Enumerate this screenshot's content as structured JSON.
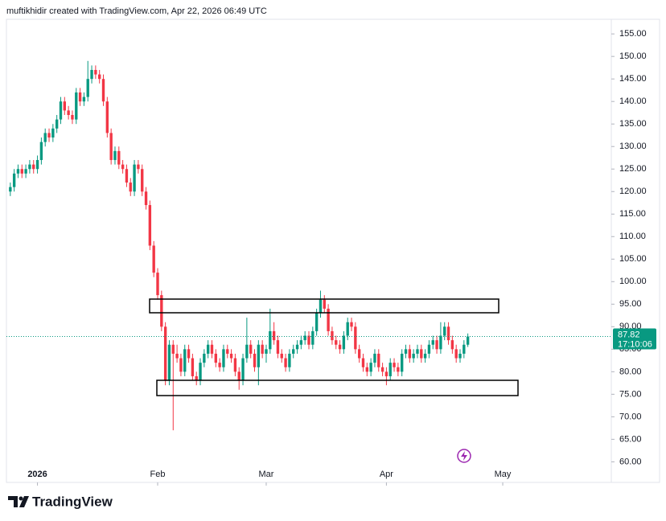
{
  "header": "muftikhidir created with TradingView.com, Apr 22, 2026 06:49 UTC",
  "logo": "TradingView",
  "chart_data": {
    "type": "candlestick",
    "up_color": "#089981",
    "down_color": "#f23645",
    "last_price": 87.82,
    "countdown": "17:10:06",
    "xlim": [
      -1,
      155
    ],
    "xticks": [
      {
        "value": 7,
        "label": "2026"
      },
      {
        "value": 38,
        "label": "Feb"
      },
      {
        "value": 66,
        "label": "Mar"
      },
      {
        "value": 97,
        "label": "Apr"
      },
      {
        "value": 127,
        "label": "May"
      }
    ],
    "ylim": [
      59,
      158.6
    ],
    "yticks": [
      {
        "value": 60,
        "label": "60.00"
      },
      {
        "value": 65,
        "label": "65.00"
      },
      {
        "value": 70,
        "label": "70.00"
      },
      {
        "value": 75,
        "label": "75.00"
      },
      {
        "value": 80,
        "label": "80.00"
      },
      {
        "value": 85,
        "label": "85.00"
      },
      {
        "value": 90,
        "label": "90.00"
      },
      {
        "value": 95,
        "label": "95.00"
      },
      {
        "value": 100,
        "label": "100.00"
      },
      {
        "value": 105,
        "label": "105.00"
      },
      {
        "value": 110,
        "label": "110.00"
      },
      {
        "value": 115,
        "label": "115.00"
      },
      {
        "value": 120,
        "label": "120.00"
      },
      {
        "value": 125,
        "label": "125.00"
      },
      {
        "value": 130,
        "label": "130.00"
      },
      {
        "value": 135,
        "label": "135.00"
      },
      {
        "value": 140,
        "label": "140.00"
      },
      {
        "value": 145,
        "label": "145.00"
      },
      {
        "value": 150,
        "label": "150.00"
      },
      {
        "value": 155,
        "label": "155.00"
      }
    ],
    "ohlc": [
      [
        120,
        122,
        119,
        121
      ],
      [
        121,
        125,
        120,
        124
      ],
      [
        124,
        126,
        123,
        125
      ],
      [
        125,
        126,
        123,
        124
      ],
      [
        124,
        126,
        123,
        125
      ],
      [
        125,
        127,
        124,
        126
      ],
      [
        126,
        127,
        124,
        125
      ],
      [
        125,
        128,
        124,
        127
      ],
      [
        127,
        132,
        126,
        131
      ],
      [
        131,
        134,
        130,
        133
      ],
      [
        133,
        134,
        131,
        132
      ],
      [
        132,
        135,
        131,
        134
      ],
      [
        134,
        137,
        133,
        136
      ],
      [
        136,
        141,
        135,
        140
      ],
      [
        140,
        141,
        137,
        138
      ],
      [
        138,
        139,
        136,
        137
      ],
      [
        137,
        138,
        135,
        136
      ],
      [
        136,
        143,
        135,
        142
      ],
      [
        142,
        143,
        139,
        140
      ],
      [
        140,
        142,
        139,
        141
      ],
      [
        141,
        149,
        140,
        145
      ],
      [
        145,
        148,
        144,
        147
      ],
      [
        147,
        148,
        145,
        146
      ],
      [
        146,
        147,
        144,
        145
      ],
      [
        145,
        146,
        139,
        140
      ],
      [
        140,
        141,
        132,
        133
      ],
      [
        133,
        134,
        126,
        127
      ],
      [
        127,
        130,
        126,
        129
      ],
      [
        129,
        130,
        125,
        126
      ],
      [
        126,
        127,
        124,
        125
      ],
      [
        125,
        126,
        121,
        122
      ],
      [
        122,
        123,
        119,
        120
      ],
      [
        120,
        127,
        119,
        126
      ],
      [
        126,
        127,
        124,
        125
      ],
      [
        125,
        126,
        119,
        120
      ],
      [
        120,
        121,
        116,
        117
      ],
      [
        117,
        118,
        107,
        108
      ],
      [
        108,
        109,
        101,
        102
      ],
      [
        102,
        103,
        96,
        97
      ],
      [
        97,
        98,
        89,
        90
      ],
      [
        90,
        91,
        77,
        78
      ],
      [
        78,
        87,
        77,
        86
      ],
      [
        86,
        87,
        67,
        84
      ],
      [
        84,
        86,
        82,
        83
      ],
      [
        83,
        84,
        79,
        80
      ],
      [
        80,
        86,
        79,
        85
      ],
      [
        85,
        86,
        82,
        83
      ],
      [
        83,
        84,
        78,
        79
      ],
      [
        79,
        80,
        77,
        78
      ],
      [
        78,
        83,
        77,
        82
      ],
      [
        82,
        85,
        81,
        84
      ],
      [
        84,
        87,
        83,
        86
      ],
      [
        86,
        87,
        83,
        84
      ],
      [
        84,
        85,
        81,
        82
      ],
      [
        82,
        83,
        80,
        81
      ],
      [
        81,
        86,
        80,
        85
      ],
      [
        85,
        86,
        83,
        84
      ],
      [
        84,
        85,
        82,
        83
      ],
      [
        83,
        84,
        79,
        80
      ],
      [
        80,
        81,
        76,
        78
      ],
      [
        78,
        84,
        77,
        83
      ],
      [
        83,
        92,
        82,
        86
      ],
      [
        86,
        87,
        83,
        84
      ],
      [
        84,
        85,
        80,
        81
      ],
      [
        81,
        87,
        77,
        86
      ],
      [
        86,
        87,
        83,
        84
      ],
      [
        84,
        86,
        82,
        85
      ],
      [
        85,
        94,
        84,
        89
      ],
      [
        89,
        91,
        86,
        87
      ],
      [
        87,
        88,
        83,
        84
      ],
      [
        84,
        85,
        82,
        83
      ],
      [
        83,
        84,
        80,
        81
      ],
      [
        81,
        85,
        80,
        84
      ],
      [
        84,
        86,
        83,
        85
      ],
      [
        85,
        87,
        84,
        86
      ],
      [
        86,
        88,
        85,
        87
      ],
      [
        87,
        89,
        86,
        88
      ],
      [
        88,
        89,
        85,
        86
      ],
      [
        86,
        90,
        85,
        89
      ],
      [
        89,
        94,
        88,
        93
      ],
      [
        93,
        98,
        92,
        96
      ],
      [
        96,
        97,
        93,
        94
      ],
      [
        94,
        95,
        88,
        89
      ],
      [
        89,
        90,
        86,
        87
      ],
      [
        87,
        88,
        85,
        86
      ],
      [
        86,
        87,
        84,
        85
      ],
      [
        85,
        89,
        84,
        88
      ],
      [
        88,
        92,
        87,
        91
      ],
      [
        91,
        92,
        89,
        90
      ],
      [
        90,
        91,
        84,
        85
      ],
      [
        85,
        86,
        82,
        83
      ],
      [
        83,
        84,
        80,
        81
      ],
      [
        81,
        82,
        79,
        80
      ],
      [
        80,
        83,
        79,
        82
      ],
      [
        82,
        85,
        81,
        84
      ],
      [
        84,
        85,
        80,
        81
      ],
      [
        81,
        82,
        79,
        80
      ],
      [
        80,
        81,
        77,
        79
      ],
      [
        79,
        83,
        78,
        82
      ],
      [
        82,
        83,
        80,
        81
      ],
      [
        81,
        82,
        79,
        80
      ],
      [
        80,
        85,
        79,
        84
      ],
      [
        84,
        86,
        83,
        85
      ],
      [
        85,
        86,
        82,
        83
      ],
      [
        83,
        85,
        82,
        84
      ],
      [
        84,
        86,
        83,
        85
      ],
      [
        85,
        86,
        82,
        83
      ],
      [
        83,
        85,
        82,
        84
      ],
      [
        84,
        87,
        83,
        86
      ],
      [
        86,
        88,
        85,
        87
      ],
      [
        87,
        88,
        84,
        85
      ],
      [
        85,
        91,
        84,
        88
      ],
      [
        88,
        91,
        87,
        90
      ],
      [
        90,
        91,
        86,
        87
      ],
      [
        87,
        88,
        84,
        85
      ],
      [
        85,
        86,
        82,
        83
      ],
      [
        83,
        85,
        82,
        84
      ],
      [
        84,
        87,
        83,
        86
      ],
      [
        86,
        88.5,
        85.5,
        87.82
      ]
    ]
  }
}
